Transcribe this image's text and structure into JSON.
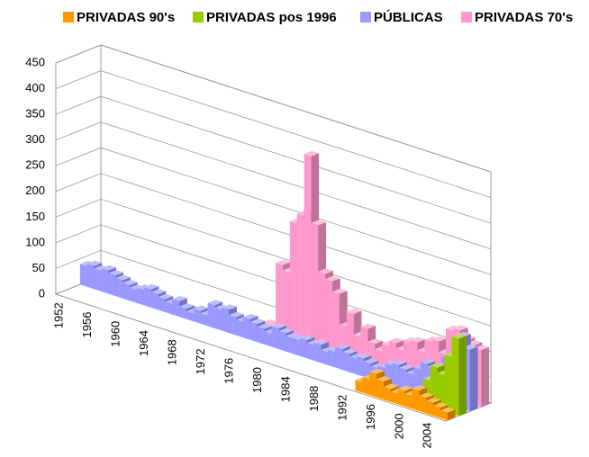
{
  "chart_data": {
    "type": "bar3d",
    "categories": [
      "1952",
      null,
      null,
      null,
      "1956",
      null,
      null,
      null,
      "1960",
      null,
      null,
      null,
      "1964",
      null,
      null,
      null,
      "1968",
      null,
      null,
      null,
      "1972",
      null,
      null,
      null,
      "1976",
      null,
      null,
      null,
      "1980",
      null,
      null,
      null,
      "1984",
      null,
      null,
      null,
      "1988",
      null,
      null,
      null,
      "1992",
      null,
      null,
      null,
      "1996",
      null,
      null,
      null,
      "2000",
      null,
      null,
      null,
      "2004",
      null,
      null
    ],
    "series": [
      {
        "name": "PRIVADAS 90's",
        "color": "#ff9900",
        "values": [
          null,
          null,
          null,
          null,
          null,
          null,
          null,
          null,
          null,
          null,
          null,
          null,
          null,
          null,
          null,
          null,
          null,
          null,
          null,
          null,
          null,
          null,
          null,
          null,
          null,
          null,
          null,
          null,
          null,
          null,
          null,
          null,
          null,
          null,
          null,
          null,
          null,
          null,
          null,
          null,
          null,
          null,
          20,
          30,
          45,
          35,
          25,
          20,
          30,
          25,
          40,
          30,
          25,
          20,
          15
        ]
      },
      {
        "name": "PRIVADAS pos 1996",
        "color": "#99cc00",
        "values": [
          null,
          null,
          null,
          null,
          null,
          null,
          null,
          null,
          null,
          null,
          null,
          null,
          null,
          null,
          null,
          null,
          null,
          null,
          null,
          null,
          null,
          null,
          null,
          null,
          null,
          null,
          null,
          null,
          null,
          null,
          null,
          null,
          null,
          null,
          null,
          null,
          null,
          null,
          null,
          null,
          null,
          null,
          null,
          null,
          null,
          null,
          null,
          null,
          null,
          null,
          50,
          80,
          70,
          110,
          150
        ]
      },
      {
        "name": "PÚBLICAS",
        "color": "#9999ff",
        "values": [
          40,
          45,
          40,
          45,
          40,
          35,
          30,
          25,
          30,
          35,
          30,
          25,
          20,
          30,
          20,
          15,
          25,
          20,
          45,
          40,
          45,
          35,
          30,
          40,
          35,
          30,
          25,
          40,
          35,
          30,
          30,
          35,
          30,
          35,
          25,
          30,
          40,
          35,
          30,
          35,
          30,
          25,
          30,
          40,
          45,
          40,
          35,
          50,
          65,
          60,
          55,
          90,
          95,
          140,
          120
        ]
      },
      {
        "name": "PRIVADAS 70's",
        "color": "#ff99cc",
        "values": [
          null,
          null,
          null,
          null,
          null,
          null,
          null,
          null,
          null,
          null,
          null,
          null,
          null,
          null,
          null,
          null,
          null,
          null,
          null,
          null,
          null,
          null,
          null,
          20,
          25,
          25,
          150,
          140,
          240,
          260,
          380,
          250,
          160,
          150,
          130,
          70,
          100,
          60,
          80,
          55,
          45,
          60,
          70,
          60,
          80,
          85,
          70,
          95,
          100,
          80,
          130,
          135,
          120,
          115,
          110
        ]
      }
    ],
    "ylim": [
      0,
      450
    ],
    "yticks": [
      0,
      50,
      100,
      150,
      200,
      250,
      300,
      350,
      400,
      450
    ],
    "grid": true
  }
}
